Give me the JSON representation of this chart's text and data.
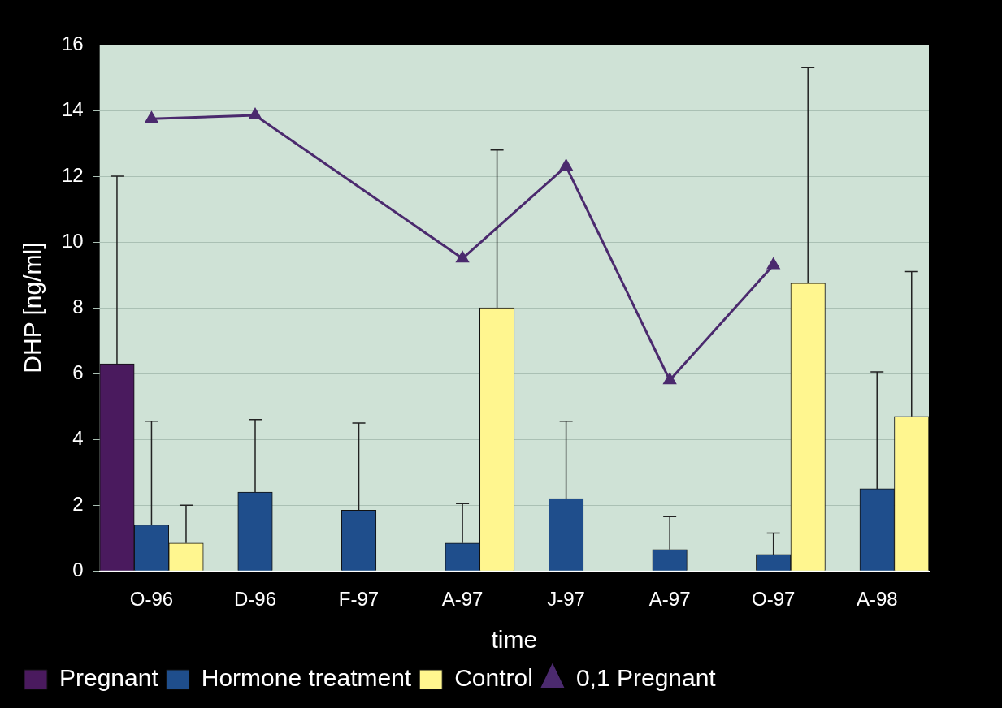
{
  "chart_data": {
    "type": "bar",
    "xlabel": "time",
    "ylabel": "DHP [ng/ml]",
    "categories": [
      "O-96",
      "D-96",
      "F-97",
      "A-97",
      "J-97",
      "A-97",
      "O-97",
      "A-98"
    ],
    "series": [
      {
        "name": "Pregnant",
        "color": "#4a1a5e",
        "values": [
          6.3,
          null,
          null,
          null,
          null,
          null,
          null,
          null
        ],
        "errors": [
          [
            6.3,
            12
          ],
          null,
          null,
          null,
          null,
          null,
          null,
          null
        ]
      },
      {
        "name": "Hormone treatment",
        "color": "#1f4e8c",
        "values": [
          1.4,
          2.4,
          1.85,
          0.85,
          2.2,
          0.65,
          0.5,
          2.5
        ],
        "errors": [
          [
            1.4,
            4.55
          ],
          [
            2.4,
            4.6
          ],
          [
            1.85,
            4.5
          ],
          [
            0.85,
            2.05
          ],
          [
            2.2,
            4.55
          ],
          [
            0.65,
            1.65
          ],
          [
            0.5,
            1.15
          ],
          [
            2.5,
            6.05
          ]
        ]
      },
      {
        "name": "Control",
        "color": "#fff68f",
        "values": [
          0.85,
          null,
          null,
          8.0,
          null,
          null,
          8.75,
          4.7
        ],
        "errors": [
          [
            0.85,
            2.0
          ],
          null,
          null,
          [
            8.0,
            12.8
          ],
          null,
          null,
          [
            8.75,
            15.3
          ],
          [
            4.7,
            9.1
          ]
        ]
      },
      {
        "name": "0,1 Pregnant",
        "type": "line",
        "color": "#4b2a6e",
        "values": [
          13.75,
          13.85,
          null,
          9.5,
          12.3,
          5.8,
          9.3,
          null
        ],
        "marker": "triangle"
      }
    ],
    "ylim": [
      0,
      16
    ],
    "yticks": [
      0,
      2,
      4,
      6,
      8,
      10,
      12,
      14,
      16
    ],
    "grid": "y",
    "legend": "bottom"
  }
}
